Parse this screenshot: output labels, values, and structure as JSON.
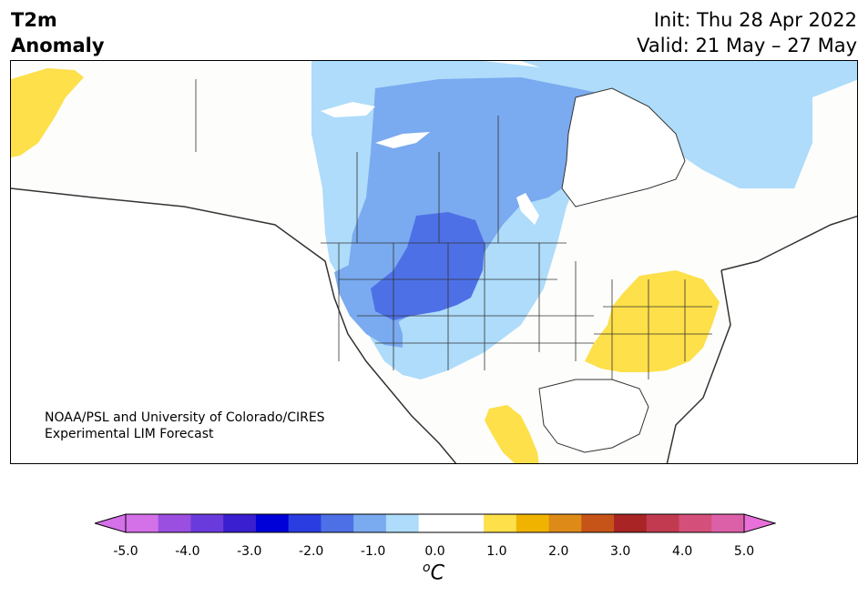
{
  "title": {
    "line1": "T2m",
    "line2": "Anomaly",
    "init": "Init: Thu 28 Apr 2022",
    "valid": "Valid: 21 May – 27 May"
  },
  "credit": {
    "line1": "NOAA/PSL and University of Colorado/CIRES",
    "line2": "Experimental LIM Forecast"
  },
  "colorbar": {
    "unit_base": "C",
    "unit_sup": "o",
    "ticks": [
      "-5.0",
      "-4.0",
      "-3.0",
      "-2.0",
      "-1.0",
      "0.0",
      "1.0",
      "2.0",
      "3.0",
      "4.0",
      "5.0"
    ],
    "colors": [
      "#d470e8",
      "#9b4fe0",
      "#6a3bdc",
      "#3a1fd0",
      "#0000d8",
      "#2a3de0",
      "#4d70e6",
      "#7aaaf0",
      "#aedcfa",
      "#ffffff",
      "#ffffff",
      "#fde04a",
      "#f0b400",
      "#de8a18",
      "#c65418",
      "#a92424",
      "#c23a50",
      "#d4507a",
      "#dc60a8"
    ],
    "under_color": "#d470e8",
    "over_color": "#e870d8"
  },
  "map": {
    "colors": {
      "land": "#fdfdfb",
      "water_ocean": "#ffffff",
      "anom_minus1": "#aedcfa",
      "anom_minus2": "#7aaaf0",
      "anom_minus3": "#4d70e6",
      "anom_plus1": "#fde04a"
    }
  }
}
